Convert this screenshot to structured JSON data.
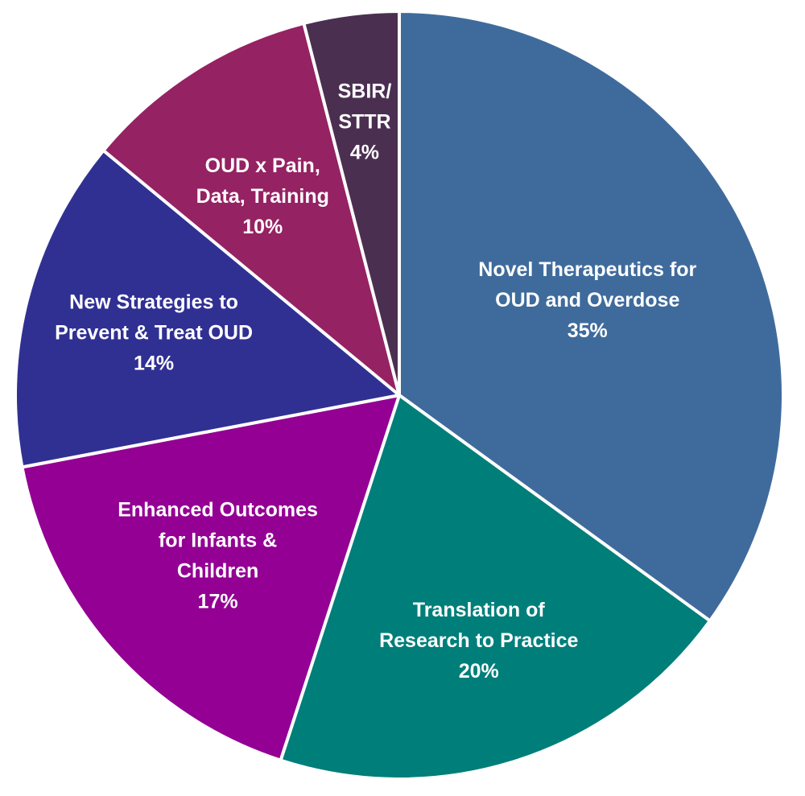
{
  "chart_data": {
    "type": "pie",
    "start_angle_deg": 0,
    "direction": "clockwise",
    "slices": [
      {
        "label_lines": [
          "Novel Therapeutics for",
          "OUD and Overdose"
        ],
        "percent_label": "35%",
        "value": 35,
        "color": "#3F6B9C"
      },
      {
        "label_lines": [
          "Translation of",
          "Research to Practice"
        ],
        "percent_label": "20%",
        "value": 20,
        "color": "#007E7A"
      },
      {
        "label_lines": [
          "Enhanced Outcomes",
          "for Infants &",
          "Children"
        ],
        "percent_label": "17%",
        "value": 17,
        "color": "#930093"
      },
      {
        "label_lines": [
          "New Strategies to",
          "Prevent & Treat OUD"
        ],
        "percent_label": "14%",
        "value": 14,
        "color": "#303093"
      },
      {
        "label_lines": [
          "OUD x Pain,",
          "Data, Training"
        ],
        "percent_label": "10%",
        "value": 10,
        "color": "#952262"
      },
      {
        "label_lines": [
          "SBIR/",
          "STTR"
        ],
        "percent_label": "4%",
        "value": 4,
        "color": "#4B2F51"
      }
    ]
  }
}
